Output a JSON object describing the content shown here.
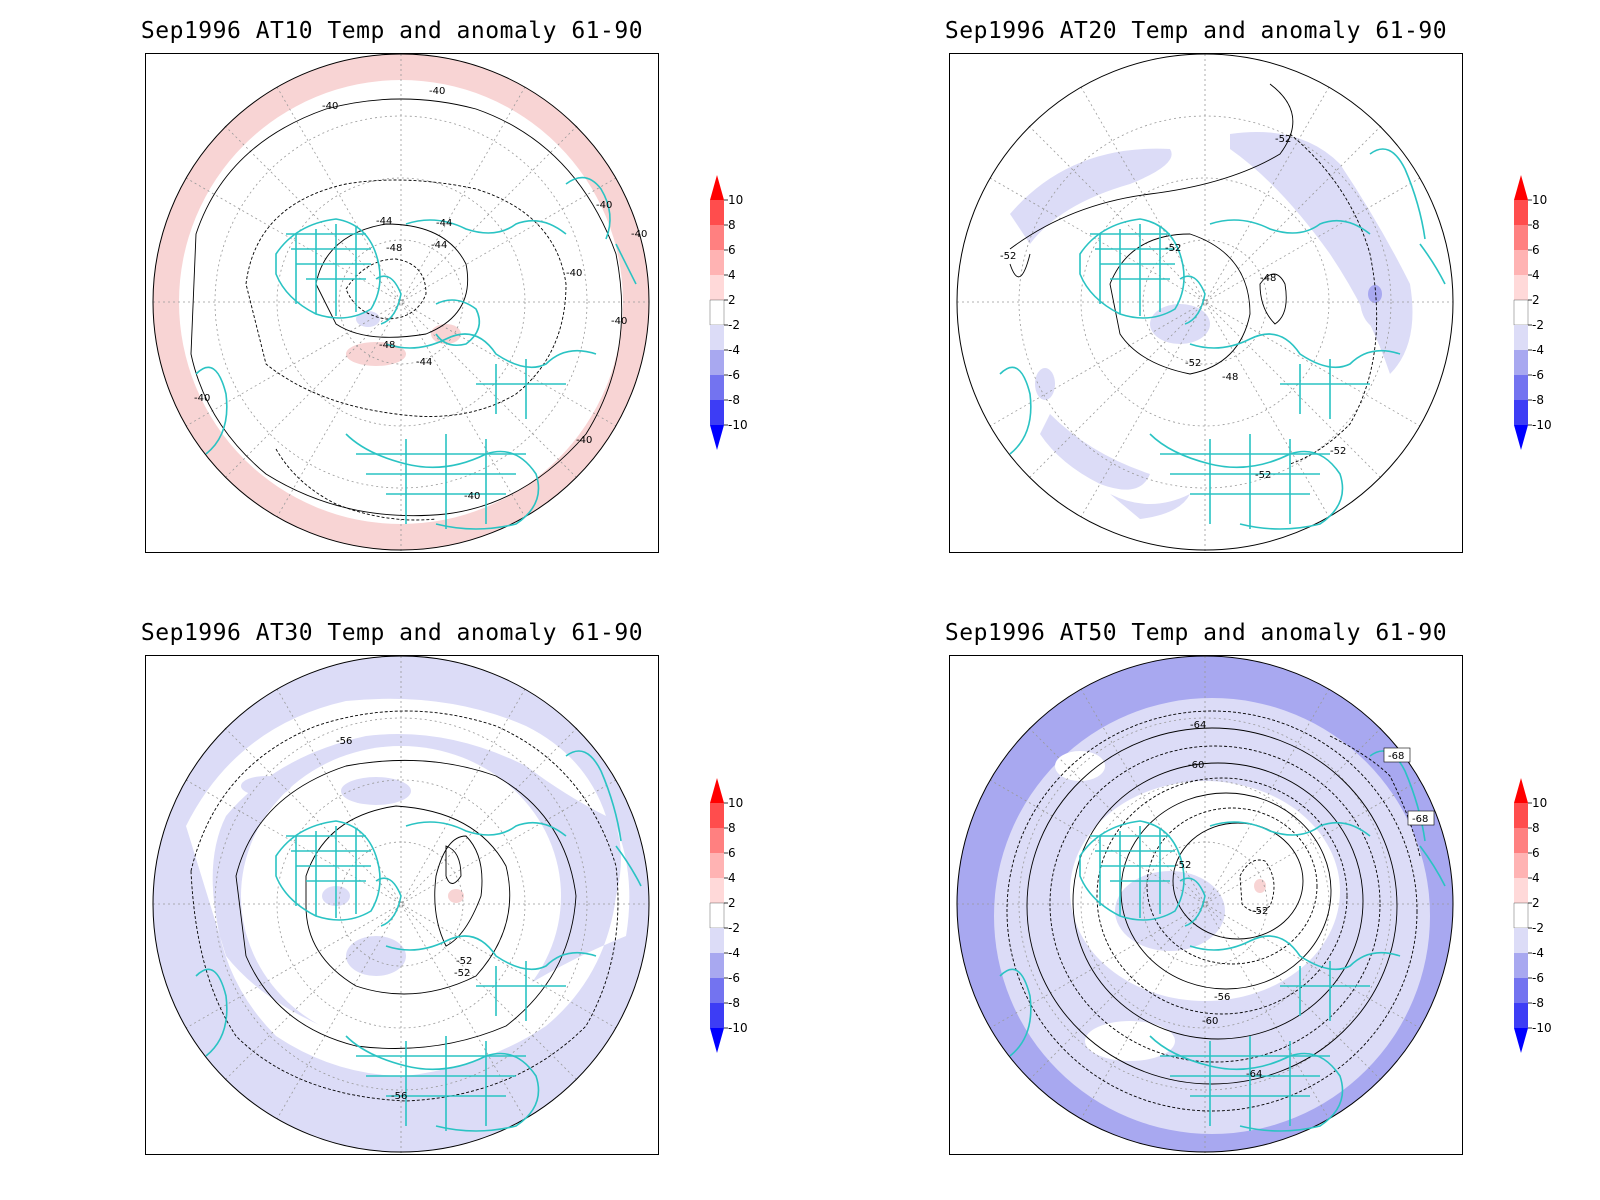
{
  "panels": [
    {
      "title": "Sep1996 AT10 Temp and anomaly 61-90",
      "contour_labels": [
        "-40",
        "-40",
        "-44",
        "-44",
        "-48",
        "-44",
        "-48",
        "-44",
        "-40",
        "-40",
        "-40",
        "-40",
        "-40",
        "-40",
        "-40"
      ]
    },
    {
      "title": "Sep1996 AT20 Temp and anomaly 61-90",
      "contour_labels": [
        "-52",
        "-52",
        "-52",
        "-48",
        "-52",
        "-48",
        "-52",
        "-52"
      ]
    },
    {
      "title": "Sep1996 AT30 Temp and anomaly 61-90",
      "contour_labels": [
        "-56",
        "-52",
        "-52",
        "-56"
      ]
    },
    {
      "title": "Sep1996 AT50 Temp and anomaly 61-90",
      "contour_labels": [
        "-64",
        "-68",
        "-60",
        "-68",
        "-52",
        "-52",
        "-56",
        "-60",
        "-64"
      ]
    }
  ],
  "colorbar": {
    "ticks": [
      "10",
      "8",
      "6",
      "4",
      "2",
      "-2",
      "-4",
      "-6",
      "-8",
      "-10"
    ],
    "colors": [
      "#ff0000",
      "#ff4d4d",
      "#ff8080",
      "#ffb3b3",
      "#ffd9d9",
      "#ffffff",
      "#dcdcf7",
      "#a8a8f0",
      "#7373f0",
      "#3d3df5",
      "#0000ff"
    ]
  },
  "map_colors": {
    "coast": "#2ac3c3",
    "warm_anomaly": "#f8d4d4",
    "cool_anomaly_light": "#dcdcf7",
    "cool_anomaly_mid": "#a8a8f0"
  }
}
